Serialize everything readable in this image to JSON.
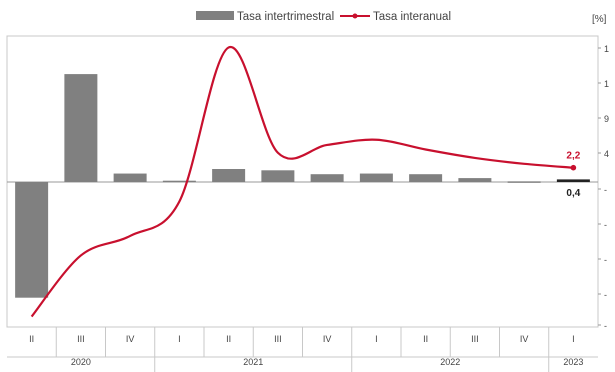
{
  "chart_data": {
    "type": "bar+line",
    "unit_label": "[%]",
    "legend": {
      "bar_label": "Tasa intertrimestral",
      "line_label": "Tasa interanual",
      "placement": "top-center"
    },
    "quarters": [
      "II",
      "III",
      "IV",
      "I",
      "II",
      "III",
      "IV",
      "I",
      "II",
      "III",
      "IV",
      "I"
    ],
    "years": [
      {
        "label": "2020",
        "span": 3
      },
      {
        "label": "2021",
        "span": 4
      },
      {
        "label": "2022",
        "span": 4
      },
      {
        "label": "2023",
        "span": 1
      }
    ],
    "series": [
      {
        "name": "Tasa intertrimestral",
        "kind": "bar",
        "color": "#808080",
        "values": [
          -17.8,
          16.6,
          1.3,
          0.2,
          2.0,
          1.8,
          1.2,
          1.3,
          1.2,
          0.6,
          0.1,
          0.4
        ]
      },
      {
        "name": "Tasa interanual",
        "kind": "line",
        "color": "#c8102e",
        "values": [
          -20.7,
          -11.3,
          -8.3,
          -3.0,
          20.7,
          4.5,
          5.7,
          6.5,
          5.0,
          3.7,
          2.8,
          2.2
        ]
      }
    ],
    "data_labels": [
      {
        "series": "Tasa interanual",
        "index": 11,
        "text": "2,2"
      },
      {
        "series": "Tasa intertrimestral",
        "index": 11,
        "text": "0,4"
      }
    ],
    "y_ticks": [
      "1",
      "1",
      "9",
      "4",
      "-",
      "-",
      "-",
      "-",
      "-"
    ],
    "ylim": [
      -22,
      22
    ],
    "grid": false,
    "last_bar_color": "#222222"
  }
}
